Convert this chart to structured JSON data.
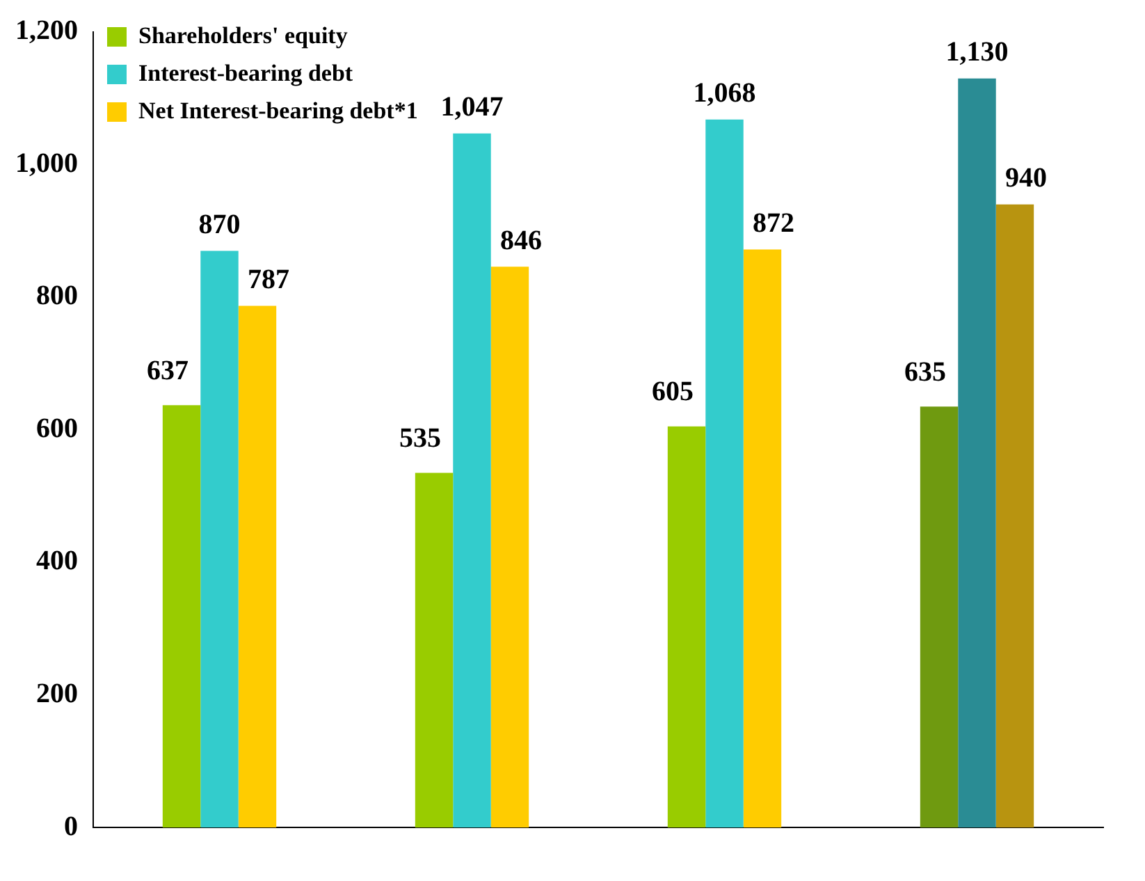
{
  "chart_data": {
    "type": "bar",
    "categories": [
      null,
      null,
      null,
      null
    ],
    "series": [
      {
        "name": "Shareholders' equity",
        "color": "#99cc00",
        "colors": [
          "#99cc00",
          "#99cc00",
          "#99cc00",
          "#6f9a10"
        ],
        "values": [
          637,
          535,
          605,
          635
        ],
        "value_labels": [
          "637",
          "535",
          "605",
          "635"
        ]
      },
      {
        "name": "Interest-bearing debt",
        "color": "#33cccc",
        "colors": [
          "#33cccc",
          "#33cccc",
          "#33cccc",
          "#2a8c94"
        ],
        "values": [
          870,
          1047,
          1068,
          1130
        ],
        "value_labels": [
          "870",
          "1,047",
          "1,068",
          "1,130"
        ]
      },
      {
        "name": "Net Interest-bearing debt*1",
        "color": "#ffcc00",
        "colors": [
          "#ffcc00",
          "#ffcc00",
          "#ffcc00",
          "#b89410"
        ],
        "values": [
          787,
          846,
          872,
          940
        ],
        "value_labels": [
          "787",
          "846",
          "872",
          "940"
        ]
      }
    ],
    "ylim": [
      0,
      1200
    ],
    "yticks": [
      0,
      {
        "value": 200,
        "label": "200"
      },
      {
        "value": 400,
        "label": "400"
      },
      {
        "value": 600,
        "label": "600"
      },
      {
        "value": 800,
        "label": "800"
      },
      {
        "value": 1000,
        "label": "1,000"
      },
      {
        "value": 1200,
        "label": "1,200"
      }
    ],
    "legend": "top left",
    "grid": false
  }
}
